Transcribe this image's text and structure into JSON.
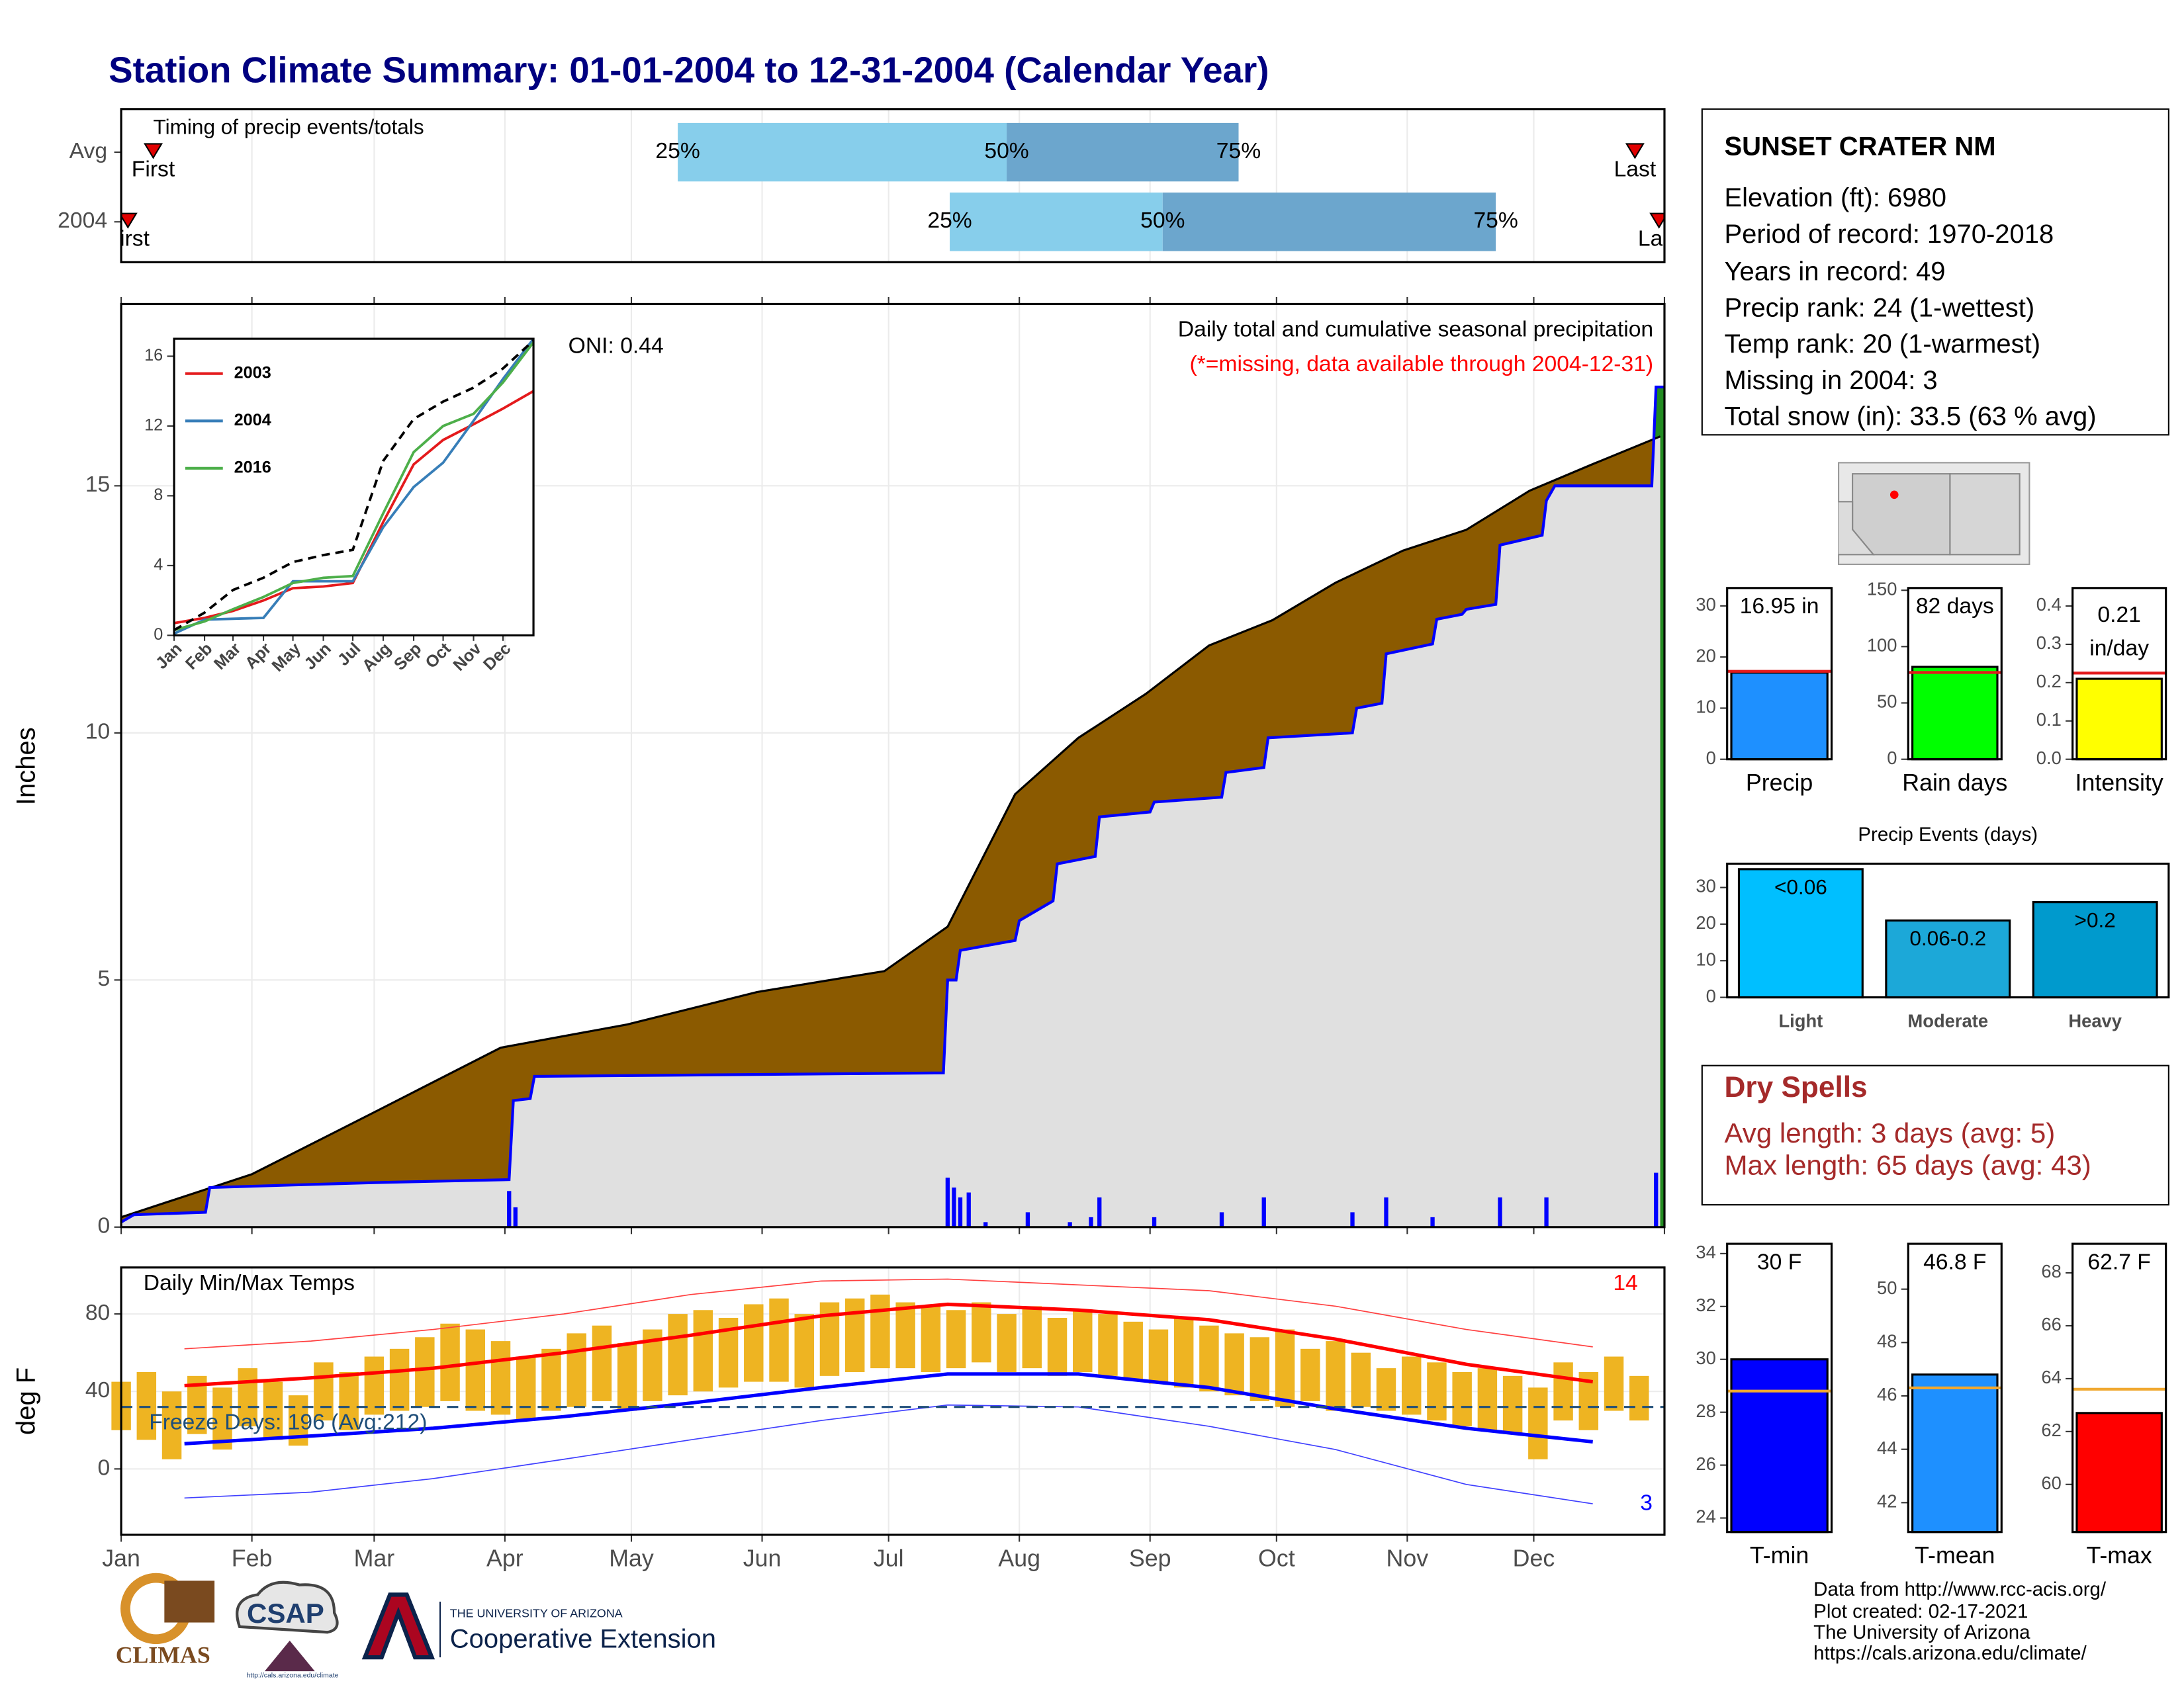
{
  "title": "Station Climate Summary: 01-01-2004 to 12-31-2004 (Calendar Year)",
  "station": {
    "name": "SUNSET CRATER NM",
    "lines": [
      "Elevation (ft): 6980",
      "Period of record: 1970-2018",
      "Years in record: 49",
      "Precip rank: 24 (1-wettest)",
      "Temp rank: 20 (1-warmest)",
      "Missing in 2004: 3",
      "Total snow (in): 33.5 (63 % avg)"
    ]
  },
  "dry_spells": {
    "title": "Dry Spells",
    "lines": [
      "Avg length: 3 days (avg: 5)",
      "Max length: 65 days (avg: 43)"
    ]
  },
  "footer": [
    "Data from http://www.rcc-acis.org/",
    "Plot created: 02-17-2021",
    "The University of Arizona",
    "https://cals.arizona.edu/climate/"
  ],
  "logos": {
    "climas": "CLIMAS",
    "csap": "CSAP",
    "csap_url": "http://cals.arizona.edu/climate",
    "ua": "THE UNIVERSITY OF ARIZONA",
    "extension": "Cooperative Extension"
  },
  "chart_data": [
    {
      "type": "timing",
      "title": "Timing of precip events/totals",
      "xlim": [
        0,
        366
      ],
      "rows": [
        {
          "name": "Avg",
          "first": 7.6,
          "q25": 132,
          "q50": 210,
          "q75": 265,
          "last": 359
        },
        {
          "name": "2004",
          "first": 1.6,
          "q25": 196.5,
          "q50": 247,
          "q75": 326,
          "last": 364.7
        }
      ],
      "marker_labels": {
        "first": "First",
        "last": "Last"
      },
      "quantile_labels": [
        "25%",
        "50%",
        "75%"
      ],
      "colors": [
        "#87ceeb",
        "#6ca6cd"
      ],
      "marker_color": "#e00000"
    },
    {
      "type": "cumulative",
      "title": "Daily total and cumulative seasonal precipitation",
      "subtitle": "(*=missing, data available through 2004-12-31)",
      "annotation": "ONI: 0.44",
      "ylabel": "Inches",
      "xlim": [
        0,
        366
      ],
      "ylim": [
        0,
        18.68
      ],
      "yticks": [
        0,
        5,
        10,
        15
      ],
      "xticks": [
        0,
        31,
        60,
        91,
        121,
        152,
        182,
        213,
        244,
        274,
        305,
        335,
        366
      ],
      "grid": true,
      "avg_days": [
        0,
        31,
        59,
        90,
        120,
        151,
        181,
        196,
        212,
        227,
        243,
        258,
        273,
        288,
        304,
        319,
        334,
        349,
        365
      ],
      "avg_values": [
        0.2,
        1.07,
        2.28,
        3.63,
        4.1,
        4.76,
        5.18,
        6.08,
        8.76,
        9.9,
        10.79,
        11.77,
        12.28,
        13.04,
        13.69,
        14.11,
        14.9,
        15.44,
        16.0
      ],
      "days": [
        0,
        3,
        20,
        21,
        40,
        60,
        92,
        93,
        97,
        98,
        195,
        196,
        198,
        199,
        212,
        213,
        221,
        222,
        231,
        232,
        244,
        245,
        261,
        262,
        271,
        272,
        292,
        293,
        299,
        300,
        311,
        312,
        318,
        319,
        326,
        327,
        337,
        338,
        340,
        363,
        364,
        366
      ],
      "values": [
        0.1,
        0.25,
        0.3,
        0.8,
        0.85,
        0.9,
        0.96,
        2.56,
        2.6,
        3.05,
        3.12,
        5.0,
        5.0,
        5.6,
        5.8,
        6.2,
        6.6,
        7.35,
        7.5,
        8.3,
        8.4,
        8.6,
        8.7,
        9.2,
        9.3,
        9.9,
        10.0,
        10.5,
        10.6,
        11.6,
        11.8,
        12.3,
        12.4,
        12.5,
        12.6,
        13.8,
        14.0,
        14.7,
        15.0,
        15.0,
        17.0,
        17.0
      ],
      "daily_days": [
        92,
        93.5,
        196,
        197.5,
        199,
        201,
        205,
        215,
        225,
        230,
        232,
        245,
        261,
        271,
        292,
        300,
        311,
        327,
        338,
        364
      ],
      "daily_values": [
        0.73,
        0.4,
        1.0,
        0.8,
        0.6,
        0.7,
        0.1,
        0.3,
        0.1,
        0.2,
        0.6,
        0.2,
        0.3,
        0.6,
        0.3,
        0.6,
        0.2,
        0.6,
        0.6,
        1.1
      ],
      "fill_color": "#e0e0e0",
      "below_color": "#8b5a00",
      "above_color": "#228b22",
      "line_color": "#0000ff",
      "avg_color": "#000000",
      "bar_color": "#0000ff",
      "subtitle_color": "#ff0000"
    },
    {
      "type": "line",
      "xlim": [
        0,
        366
      ],
      "ylim": [
        0,
        17
      ],
      "yticks": [
        0,
        4,
        8,
        12,
        16
      ],
      "x": [
        0,
        31,
        60,
        91,
        121,
        152,
        182,
        213,
        244,
        274,
        305,
        335,
        366
      ],
      "xticks": [
        {
          "value": 0,
          "label": "Jan"
        },
        {
          "value": 31,
          "label": "Feb"
        },
        {
          "value": 60,
          "label": "Mar"
        },
        {
          "value": 91,
          "label": "Apr"
        },
        {
          "value": 121,
          "label": "May"
        },
        {
          "value": 152,
          "label": "Jun"
        },
        {
          "value": 182,
          "label": "Jul"
        },
        {
          "value": 213,
          "label": "Aug"
        },
        {
          "value": 244,
          "label": "Sep"
        },
        {
          "value": 274,
          "label": "Oct"
        },
        {
          "value": 305,
          "label": "Nov"
        },
        {
          "value": 335,
          "label": "Dec"
        }
      ],
      "series": [
        {
          "name": "2003",
          "color": "#e41a1c",
          "values": [
            0.7,
            1.0,
            1.4,
            2.0,
            2.7,
            2.8,
            3.0,
            6.5,
            9.8,
            11.2,
            12.1,
            13.0,
            14.0
          ]
        },
        {
          "name": "2004",
          "color": "#377eb8",
          "values": [
            0.1,
            0.9,
            0.95,
            1.0,
            3.1,
            3.1,
            3.1,
            6.2,
            8.5,
            9.9,
            12.3,
            14.7,
            17.0
          ]
        },
        {
          "name": "2016",
          "color": "#4daf4a",
          "values": [
            0.3,
            0.8,
            1.5,
            2.2,
            3.0,
            3.3,
            3.4,
            7.0,
            10.5,
            12.0,
            12.7,
            14.5,
            16.8
          ]
        },
        {
          "color": "#000000",
          "dash": true,
          "values": [
            0.3,
            1.3,
            2.6,
            3.3,
            4.2,
            4.6,
            4.9,
            10.0,
            12.4,
            13.4,
            14.2,
            15.3,
            16.9
          ]
        }
      ]
    },
    {
      "type": "temperature",
      "title": "Daily Min/Max Temps",
      "ylabel": "deg F",
      "xlim": [
        0,
        366
      ],
      "ylim": [
        -34,
        104
      ],
      "yticks": [
        0,
        40,
        80
      ],
      "grid": true,
      "xticks": [
        {
          "value": 0,
          "label": "Jan"
        },
        {
          "value": 31,
          "label": "Feb"
        },
        {
          "value": 60,
          "label": "Mar"
        },
        {
          "value": 91,
          "label": "Apr"
        },
        {
          "value": 121,
          "label": "May"
        },
        {
          "value": 152,
          "label": "Jun"
        },
        {
          "value": 182,
          "label": "Jul"
        },
        {
          "value": 213,
          "label": "Aug"
        },
        {
          "value": 244,
          "label": "Sep"
        },
        {
          "value": 274,
          "label": "Oct"
        },
        {
          "value": 305,
          "label": "Nov"
        },
        {
          "value": 335,
          "label": "Dec"
        }
      ],
      "days": [
        0,
        6,
        12,
        18,
        24,
        30,
        36,
        42,
        48,
        54,
        60,
        66,
        72,
        78,
        84,
        90,
        96,
        102,
        108,
        114,
        120,
        126,
        132,
        138,
        144,
        150,
        156,
        162,
        168,
        174,
        180,
        186,
        192,
        198,
        204,
        210,
        216,
        222,
        228,
        234,
        240,
        246,
        252,
        258,
        264,
        270,
        276,
        282,
        288,
        294,
        300,
        306,
        312,
        318,
        324,
        330,
        336,
        342,
        348,
        354,
        360
      ],
      "max": [
        45,
        50,
        40,
        48,
        42,
        52,
        45,
        38,
        55,
        50,
        58,
        62,
        68,
        75,
        72,
        66,
        58,
        62,
        70,
        74,
        65,
        72,
        80,
        82,
        78,
        85,
        88,
        80,
        86,
        88,
        90,
        86,
        84,
        82,
        86,
        80,
        84,
        78,
        82,
        80,
        76,
        72,
        78,
        74,
        70,
        68,
        72,
        62,
        66,
        60,
        52,
        58,
        55,
        50,
        52,
        48,
        42,
        55,
        50,
        58,
        48
      ],
      "min": [
        20,
        15,
        5,
        18,
        10,
        22,
        15,
        12,
        25,
        20,
        28,
        30,
        32,
        35,
        30,
        28,
        25,
        30,
        32,
        35,
        30,
        35,
        38,
        40,
        42,
        45,
        45,
        42,
        48,
        50,
        52,
        52,
        50,
        52,
        55,
        50,
        52,
        48,
        50,
        48,
        46,
        44,
        42,
        40,
        38,
        35,
        32,
        35,
        30,
        32,
        30,
        28,
        25,
        22,
        20,
        18,
        5,
        25,
        20,
        30,
        25
      ],
      "bar_color": "#eeb422",
      "line_days": [
        15,
        45,
        74,
        105,
        135,
        166,
        196,
        227,
        258,
        288,
        319,
        349
      ],
      "lines": [
        {
          "color": "#ff0000",
          "width": 2.5,
          "values": [
            43,
            47,
            52,
            60,
            69,
            79,
            85,
            82,
            77,
            67,
            54,
            45
          ]
        },
        {
          "color": "#0000ff",
          "width": 2.5,
          "values": [
            13,
            17,
            21,
            27,
            34,
            42,
            49,
            49,
            42,
            31,
            21,
            14
          ]
        },
        {
          "color": "#ff4040",
          "width": 0.8,
          "values": [
            62,
            66,
            72,
            80,
            90,
            97,
            98,
            95,
            92,
            84,
            72,
            63
          ]
        },
        {
          "color": "#4040ff",
          "width": 0.8,
          "values": [
            -15,
            -12,
            -5,
            5,
            15,
            25,
            33,
            32,
            22,
            10,
            -8,
            -18
          ]
        }
      ],
      "freeze_line": 32,
      "freeze_color": "#1f4e79",
      "freeze_label": "Freeze Days: 196 (Avg:212)",
      "annotations": [
        {
          "text": "14",
          "color": "#ff0000"
        },
        {
          "text": "3",
          "color": "#0000ff"
        }
      ]
    },
    {
      "type": "mini",
      "xlabel": "Precip",
      "ylim": [
        0,
        33.5
      ],
      "yticks": [
        0,
        10,
        20,
        30
      ],
      "values": [
        16.95
      ],
      "value_labels": [
        "16.95 in"
      ],
      "avg": 17.2,
      "color": "#1e90ff",
      "avg_color": "#e41a1c"
    },
    {
      "type": "mini",
      "xlabel": "Rain days",
      "ylim": [
        0,
        152
      ],
      "yticks": [
        0,
        50,
        100,
        150
      ],
      "values": [
        82
      ],
      "value_labels": [
        "82 days"
      ],
      "avg": 77,
      "color": "#00ff00",
      "avg_color": "#e41a1c"
    },
    {
      "type": "mini",
      "xlabel": "Intensity",
      "ylim": [
        0,
        0.447
      ],
      "yticks": [
        {
          "value": 0,
          "label": "0.0"
        },
        0.1,
        0.2,
        0.3,
        0.4
      ],
      "values": [
        0.21
      ],
      "value_labels": [
        "0.21"
      ],
      "unit_label": "in/day",
      "avg": 0.225,
      "color": "#ffff00",
      "avg_color": "#e41a1c"
    },
    {
      "type": "bar",
      "title": "Precip Events (days)",
      "categories": [
        "Light",
        "Moderate",
        "Heavy"
      ],
      "values": [
        35,
        21,
        26
      ],
      "bar_labels": [
        "<0.06",
        "0.06-0.2",
        ">0.2"
      ],
      "colors": [
        "#00bfff",
        "#1ca8d8",
        "#009acd"
      ],
      "ylim": [
        0,
        36.5
      ],
      "yticks": [
        0,
        10,
        20,
        30
      ]
    },
    {
      "type": "mini",
      "xlabel": "T-min",
      "ylim": [
        23.47,
        34.37
      ],
      "yticks": [
        24,
        26,
        28,
        30,
        32,
        34
      ],
      "values": [
        30
      ],
      "value_labels": [
        "30 F"
      ],
      "avg": 28.8,
      "color": "#0000ff",
      "avg_color": "#f0a830"
    },
    {
      "type": "mini",
      "xlabel": "T-mean",
      "ylim": [
        40.9,
        51.7
      ],
      "yticks": [
        42,
        44,
        46,
        48,
        50
      ],
      "values": [
        46.8
      ],
      "value_labels": [
        "46.8 F"
      ],
      "avg": 46.3,
      "color": "#1e90ff",
      "avg_color": "#f0a830"
    },
    {
      "type": "mini",
      "xlabel": "T-max",
      "ylim": [
        58.2,
        69.1
      ],
      "yticks": [
        60,
        62,
        64,
        66,
        68
      ],
      "values": [
        62.7
      ],
      "value_labels": [
        "62.7 F"
      ],
      "avg": 63.6,
      "color": "#ff0000",
      "avg_color": "#f0a830"
    }
  ]
}
